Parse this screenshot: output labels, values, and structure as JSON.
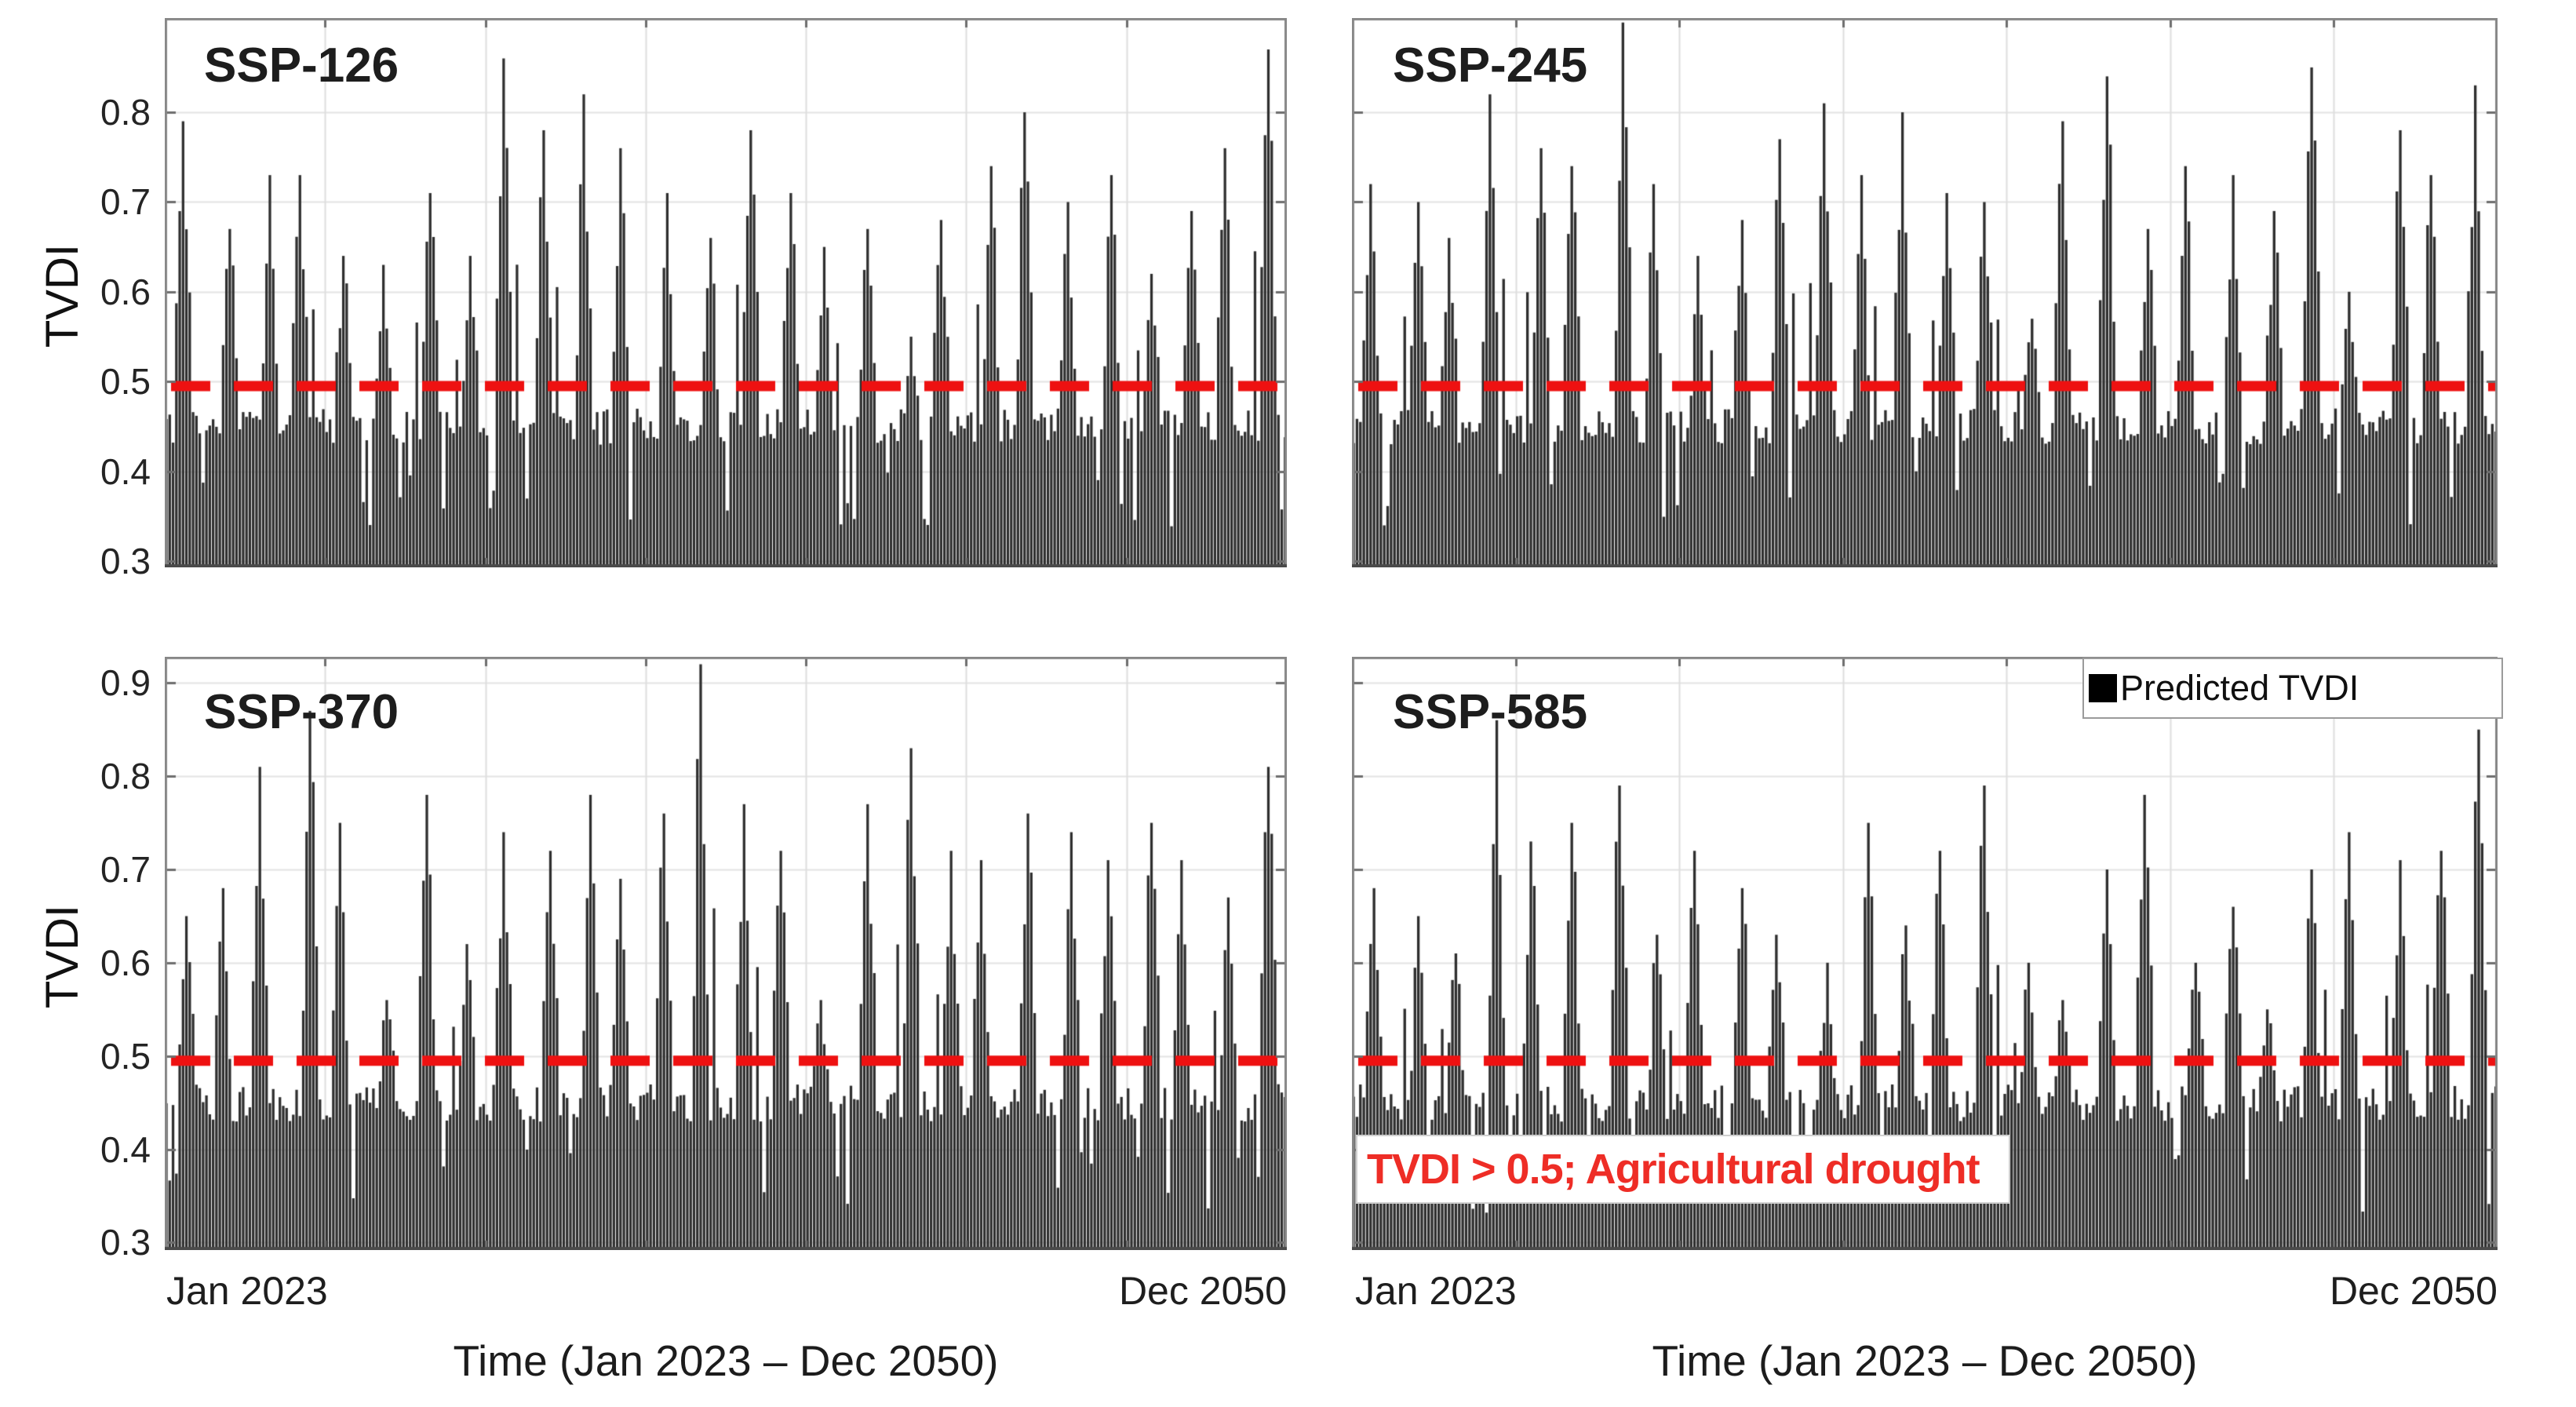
{
  "figure": {
    "ylabel": "TVDI",
    "xlabel": "Time (Jan 2023 – Dec 2050)",
    "x_start_label": "Jan 2023",
    "x_end_label": "Dec 2050",
    "legend": {
      "label": "Predicted TVDI",
      "swatch": "black-square"
    },
    "annotation": {
      "text": "TVDI > 0.5; Agricultural drought"
    },
    "colors": {
      "bar": "#2e2e2e",
      "threshold_line": "#ee1111",
      "annotation_text": "#ee2d26",
      "grid": "#e4e4e4",
      "vgrid": "#dedede",
      "frame": "#878787",
      "tick": "#6e6e6e",
      "text": "#1d1d1d"
    }
  },
  "chart_data": [
    {
      "type": "bar",
      "title": "SSP-126",
      "series_name": "Predicted TVDI",
      "x_range": [
        "Jan 2023",
        "Dec 2050"
      ],
      "n_years": 28,
      "months_per_year": 12,
      "ylim": [
        0.293,
        0.905
      ],
      "yticks": [
        0.8,
        0.7,
        0.6,
        0.5,
        0.4,
        0.3
      ],
      "show_ytick_labels": true,
      "threshold": 0.5,
      "baseline": [
        0.425,
        0.47
      ],
      "vgrid_divisions": 7,
      "annual_peaks": [
        0.79,
        0.67,
        0.73,
        0.73,
        0.64,
        0.63,
        0.71,
        0.64,
        0.86,
        0.78,
        0.82,
        0.76,
        0.71,
        0.66,
        0.78,
        0.71,
        0.65,
        0.67,
        0.55,
        0.68,
        0.74,
        0.8,
        0.7,
        0.73,
        0.62,
        0.69,
        0.76,
        0.87
      ]
    },
    {
      "type": "bar",
      "title": "SSP-245",
      "series_name": "Predicted TVDI",
      "x_range": [
        "Jan 2023",
        "Dec 2050"
      ],
      "n_years": 28,
      "months_per_year": 12,
      "ylim": [
        0.293,
        0.905
      ],
      "yticks": [
        0.8,
        0.7,
        0.6,
        0.5,
        0.4,
        0.3
      ],
      "show_ytick_labels": false,
      "threshold": 0.5,
      "baseline": [
        0.425,
        0.47
      ],
      "vgrid_divisions": 7,
      "annual_peaks": [
        0.72,
        0.7,
        0.66,
        0.82,
        0.76,
        0.74,
        0.9,
        0.72,
        0.64,
        0.68,
        0.77,
        0.81,
        0.73,
        0.8,
        0.71,
        0.7,
        0.57,
        0.79,
        0.84,
        0.67,
        0.74,
        0.73,
        0.69,
        0.85,
        0.6,
        0.78,
        0.73,
        0.83
      ]
    },
    {
      "type": "bar",
      "title": "SSP-370",
      "series_name": "Predicted TVDI",
      "x_range": [
        "Jan 2023",
        "Dec 2050"
      ],
      "n_years": 28,
      "months_per_year": 12,
      "ylim": [
        0.292,
        0.928
      ],
      "yticks": [
        0.9,
        0.8,
        0.7,
        0.6,
        0.5,
        0.4,
        0.3
      ],
      "show_ytick_labels": true,
      "threshold": 0.5,
      "baseline": [
        0.425,
        0.47
      ],
      "vgrid_divisions": 7,
      "annual_peaks": [
        0.65,
        0.68,
        0.81,
        0.87,
        0.75,
        0.56,
        0.78,
        0.62,
        0.74,
        0.72,
        0.78,
        0.69,
        0.76,
        0.92,
        0.77,
        0.72,
        0.56,
        0.77,
        0.83,
        0.72,
        0.71,
        0.76,
        0.74,
        0.71,
        0.75,
        0.71,
        0.67,
        0.81
      ]
    },
    {
      "type": "bar",
      "title": "SSP-585",
      "series_name": "Predicted TVDI",
      "x_range": [
        "Jan 2023",
        "Dec 2050"
      ],
      "n_years": 28,
      "months_per_year": 12,
      "ylim": [
        0.292,
        0.928
      ],
      "yticks": [
        0.9,
        0.8,
        0.7,
        0.6,
        0.5,
        0.4,
        0.3
      ],
      "show_ytick_labels": false,
      "threshold": 0.5,
      "baseline": [
        0.425,
        0.47
      ],
      "vgrid_divisions": 7,
      "has_legend": true,
      "has_annotation": true,
      "annual_peaks": [
        0.68,
        0.65,
        0.61,
        0.86,
        0.73,
        0.75,
        0.79,
        0.63,
        0.72,
        0.68,
        0.63,
        0.6,
        0.75,
        0.64,
        0.72,
        0.79,
        0.6,
        0.56,
        0.7,
        0.78,
        0.6,
        0.66,
        0.55,
        0.7,
        0.74,
        0.71,
        0.72,
        0.85
      ]
    }
  ]
}
